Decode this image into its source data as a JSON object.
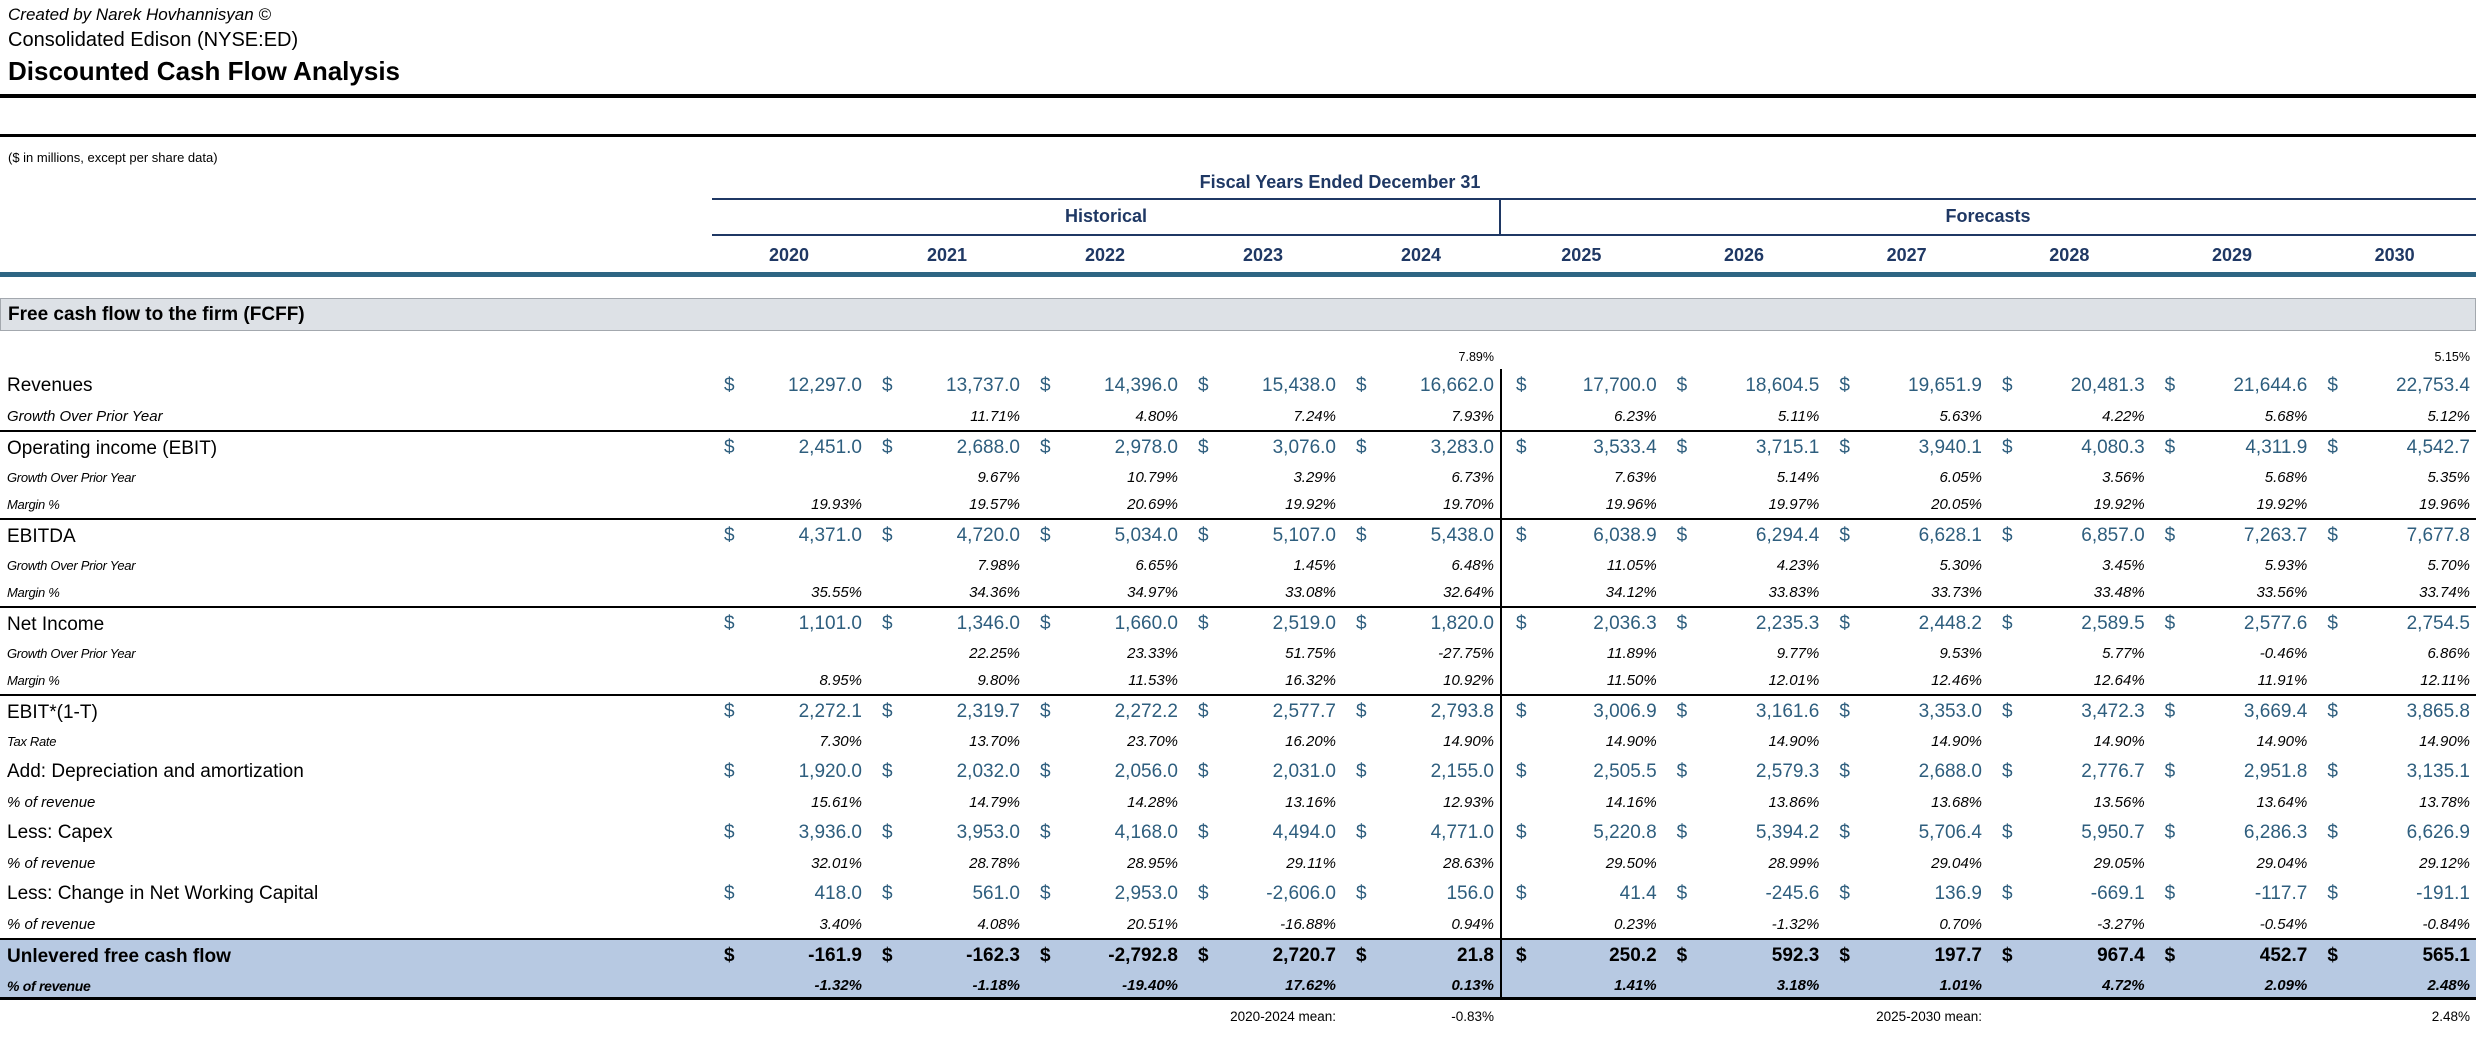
{
  "header": {
    "credit": "Created by Narek Hovhannisyan ©",
    "company": "Consolidated Edison (NYSE:ED)",
    "title": "Discounted Cash Flow Analysis",
    "units_note": "($ in millions, except per share data)"
  },
  "table": {
    "fiscal_years_header": "Fiscal Years Ended December 31",
    "groups": {
      "historical": "Historical",
      "forecasts": "Forecasts"
    },
    "years": [
      "2020",
      "2021",
      "2022",
      "2023",
      "2024",
      "2025",
      "2026",
      "2027",
      "2028",
      "2029",
      "2030"
    ],
    "section_title": "Free cash flow to the firm (FCFF)",
    "pre_row": {
      "hist_pct": "7.89%",
      "fcst_pct": "5.15%"
    },
    "rows": [
      {
        "label": "Revenues",
        "kind": "money",
        "lstyle": "main",
        "sep": false,
        "total": false,
        "values": [
          "12,297.0",
          "13,737.0",
          "14,396.0",
          "15,438.0",
          "16,662.0",
          "17,700.0",
          "18,604.5",
          "19,651.9",
          "20,481.3",
          "21,644.6",
          "22,753.4"
        ]
      },
      {
        "label": "Growth Over Prior Year",
        "kind": "pct",
        "lstyle": "sublg",
        "sep": false,
        "total": false,
        "values": [
          "",
          "11.71%",
          "4.80%",
          "7.24%",
          "7.93%",
          "6.23%",
          "5.11%",
          "5.63%",
          "4.22%",
          "5.68%",
          "5.12%"
        ]
      },
      {
        "label": "Operating income (EBIT)",
        "kind": "money",
        "lstyle": "main",
        "sep": true,
        "total": false,
        "values": [
          "2,451.0",
          "2,688.0",
          "2,978.0",
          "3,076.0",
          "3,283.0",
          "3,533.4",
          "3,715.1",
          "3,940.1",
          "4,080.3",
          "4,311.9",
          "4,542.7"
        ]
      },
      {
        "label": "Growth Over Prior Year",
        "kind": "pct",
        "lstyle": "sub",
        "sep": false,
        "total": false,
        "values": [
          "",
          "9.67%",
          "10.79%",
          "3.29%",
          "6.73%",
          "7.63%",
          "5.14%",
          "6.05%",
          "3.56%",
          "5.68%",
          "5.35%"
        ]
      },
      {
        "label": "Margin %",
        "kind": "pct",
        "lstyle": "sub",
        "sep": false,
        "total": false,
        "values": [
          "19.93%",
          "19.57%",
          "20.69%",
          "19.92%",
          "19.70%",
          "19.96%",
          "19.97%",
          "20.05%",
          "19.92%",
          "19.92%",
          "19.96%"
        ]
      },
      {
        "label": "EBITDA",
        "kind": "money",
        "lstyle": "main",
        "sep": true,
        "total": false,
        "values": [
          "4,371.0",
          "4,720.0",
          "5,034.0",
          "5,107.0",
          "5,438.0",
          "6,038.9",
          "6,294.4",
          "6,628.1",
          "6,857.0",
          "7,263.7",
          "7,677.8"
        ]
      },
      {
        "label": "Growth Over Prior Year",
        "kind": "pct",
        "lstyle": "sub",
        "sep": false,
        "total": false,
        "values": [
          "",
          "7.98%",
          "6.65%",
          "1.45%",
          "6.48%",
          "11.05%",
          "4.23%",
          "5.30%",
          "3.45%",
          "5.93%",
          "5.70%"
        ]
      },
      {
        "label": "Margin %",
        "kind": "pct",
        "lstyle": "sub",
        "sep": false,
        "total": false,
        "values": [
          "35.55%",
          "34.36%",
          "34.97%",
          "33.08%",
          "32.64%",
          "34.12%",
          "33.83%",
          "33.73%",
          "33.48%",
          "33.56%",
          "33.74%"
        ]
      },
      {
        "label": "Net Income",
        "kind": "money",
        "lstyle": "main",
        "sep": true,
        "total": false,
        "values": [
          "1,101.0",
          "1,346.0",
          "1,660.0",
          "2,519.0",
          "1,820.0",
          "2,036.3",
          "2,235.3",
          "2,448.2",
          "2,589.5",
          "2,577.6",
          "2,754.5"
        ]
      },
      {
        "label": "Growth Over Prior Year",
        "kind": "pct",
        "lstyle": "sub",
        "sep": false,
        "total": false,
        "values": [
          "",
          "22.25%",
          "23.33%",
          "51.75%",
          "-27.75%",
          "11.89%",
          "9.77%",
          "9.53%",
          "5.77%",
          "-0.46%",
          "6.86%"
        ]
      },
      {
        "label": "Margin %",
        "kind": "pct",
        "lstyle": "sub",
        "sep": false,
        "total": false,
        "values": [
          "8.95%",
          "9.80%",
          "11.53%",
          "16.32%",
          "10.92%",
          "11.50%",
          "12.01%",
          "12.46%",
          "12.64%",
          "11.91%",
          "12.11%"
        ]
      },
      {
        "label": "EBIT*(1-T)",
        "kind": "money",
        "lstyle": "main",
        "sep": true,
        "total": false,
        "values": [
          "2,272.1",
          "2,319.7",
          "2,272.2",
          "2,577.7",
          "2,793.8",
          "3,006.9",
          "3,161.6",
          "3,353.0",
          "3,472.3",
          "3,669.4",
          "3,865.8"
        ]
      },
      {
        "label": "Tax Rate",
        "kind": "pct",
        "lstyle": "sub",
        "sep": false,
        "total": false,
        "values": [
          "7.30%",
          "13.70%",
          "23.70%",
          "16.20%",
          "14.90%",
          "14.90%",
          "14.90%",
          "14.90%",
          "14.90%",
          "14.90%",
          "14.90%"
        ]
      },
      {
        "label": "Add: Depreciation and amortization",
        "kind": "money",
        "lstyle": "main",
        "sep": false,
        "total": false,
        "values": [
          "1,920.0",
          "2,032.0",
          "2,056.0",
          "2,031.0",
          "2,155.0",
          "2,505.5",
          "2,579.3",
          "2,688.0",
          "2,776.7",
          "2,951.8",
          "3,135.1"
        ]
      },
      {
        "label": "% of revenue",
        "kind": "pct",
        "lstyle": "sublg",
        "sep": false,
        "total": false,
        "values": [
          "15.61%",
          "14.79%",
          "14.28%",
          "13.16%",
          "12.93%",
          "14.16%",
          "13.86%",
          "13.68%",
          "13.56%",
          "13.64%",
          "13.78%"
        ]
      },
      {
        "label": "Less: Capex",
        "kind": "money",
        "lstyle": "main",
        "sep": false,
        "total": false,
        "values": [
          "3,936.0",
          "3,953.0",
          "4,168.0",
          "4,494.0",
          "4,771.0",
          "5,220.8",
          "5,394.2",
          "5,706.4",
          "5,950.7",
          "6,286.3",
          "6,626.9"
        ]
      },
      {
        "label": "% of revenue",
        "kind": "pct",
        "lstyle": "sublg",
        "sep": false,
        "total": false,
        "values": [
          "32.01%",
          "28.78%",
          "28.95%",
          "29.11%",
          "28.63%",
          "29.50%",
          "28.99%",
          "29.04%",
          "29.05%",
          "29.04%",
          "29.12%"
        ]
      },
      {
        "label": "Less: Change in Net Working Capital",
        "kind": "money",
        "lstyle": "main",
        "sep": false,
        "total": false,
        "values": [
          "418.0",
          "561.0",
          "2,953.0",
          "-2,606.0",
          "156.0",
          "41.4",
          "-245.6",
          "136.9",
          "-669.1",
          "-117.7",
          "-191.1"
        ]
      },
      {
        "label": "% of revenue",
        "kind": "pct",
        "lstyle": "sublg",
        "sep": false,
        "total": false,
        "values": [
          "3.40%",
          "4.08%",
          "20.51%",
          "-16.88%",
          "0.94%",
          "0.23%",
          "-1.32%",
          "0.70%",
          "-3.27%",
          "-0.54%",
          "-0.84%"
        ]
      },
      {
        "label": "Unlevered free cash flow",
        "kind": "money",
        "lstyle": "main",
        "sep": false,
        "total": true,
        "values": [
          "-161.9",
          "-162.3",
          "-2,792.8",
          "2,720.7",
          "21.8",
          "250.2",
          "592.3",
          "197.7",
          "967.4",
          "452.7",
          "565.1"
        ]
      },
      {
        "label": "% of revenue",
        "kind": "pct",
        "lstyle": "sub",
        "sep": false,
        "total": true,
        "values": [
          "-1.32%",
          "-1.18%",
          "-19.40%",
          "17.62%",
          "0.13%",
          "1.41%",
          "3.18%",
          "1.01%",
          "4.72%",
          "2.09%",
          "2.48%"
        ]
      }
    ],
    "footer": {
      "hist_mean_label": "2020-2024 mean:",
      "hist_mean_value": "-0.83%",
      "fcst_mean_label": "2025-2030 mean:",
      "fcst_mean_value": "2.48%"
    }
  },
  "colors": {
    "value_blue": "#2E5E7E",
    "header_navy": "#1F3864",
    "accent_line": "#2E6583",
    "section_band_gray": "#DDE1E6",
    "total_band_blue": "#B7C9E2"
  }
}
